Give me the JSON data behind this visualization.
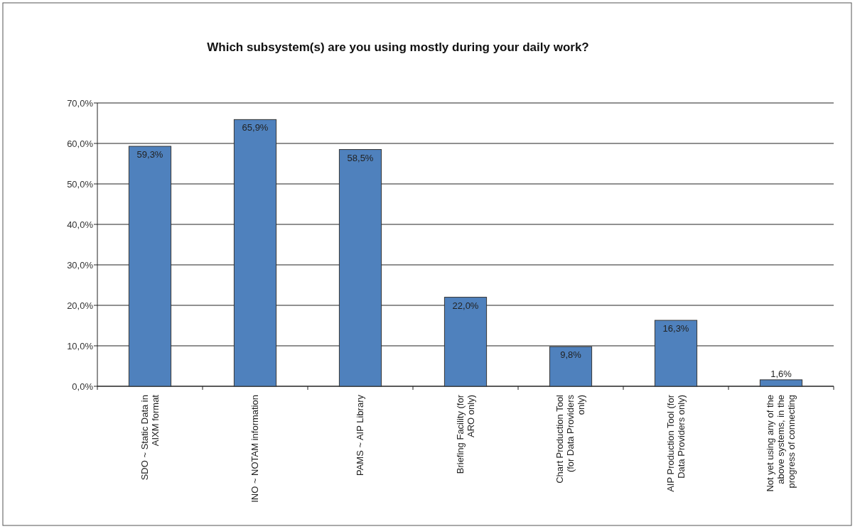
{
  "chart_data": {
    "type": "bar",
    "title": "Which subsystem(s) are you using mostly during your daily work?",
    "categories": [
      "SDO ~ Static Data in AIXM format",
      "INO ~ NOTAM information",
      "PAMS ~ AIP Library",
      "Briefing Facility (for ARO only)",
      "Chart Production Tool (for Data Providers only)",
      "AIP Production Tool (for Data Providers only)",
      "Not yet using any of the above systems, in the progress of connecting"
    ],
    "values": [
      59.3,
      65.9,
      58.5,
      22.0,
      9.8,
      16.3,
      1.6
    ],
    "value_labels": [
      "59,3%",
      "65,9%",
      "58,5%",
      "22,0%",
      "9,8%",
      "16,3%",
      "1,6%"
    ],
    "color": "#4f81bd",
    "ylim": [
      0,
      70
    ],
    "yticks": [
      {
        "value": 0,
        "label": "0,0%"
      },
      {
        "value": 10,
        "label": "10,0%"
      },
      {
        "value": 20,
        "label": "20,0%"
      },
      {
        "value": 30,
        "label": "30,0%"
      },
      {
        "value": 40,
        "label": "40,0%"
      },
      {
        "value": 50,
        "label": "50,0%"
      },
      {
        "value": 60,
        "label": "60,0%"
      },
      {
        "value": 70,
        "label": "70,0%"
      }
    ],
    "grid": "y"
  }
}
